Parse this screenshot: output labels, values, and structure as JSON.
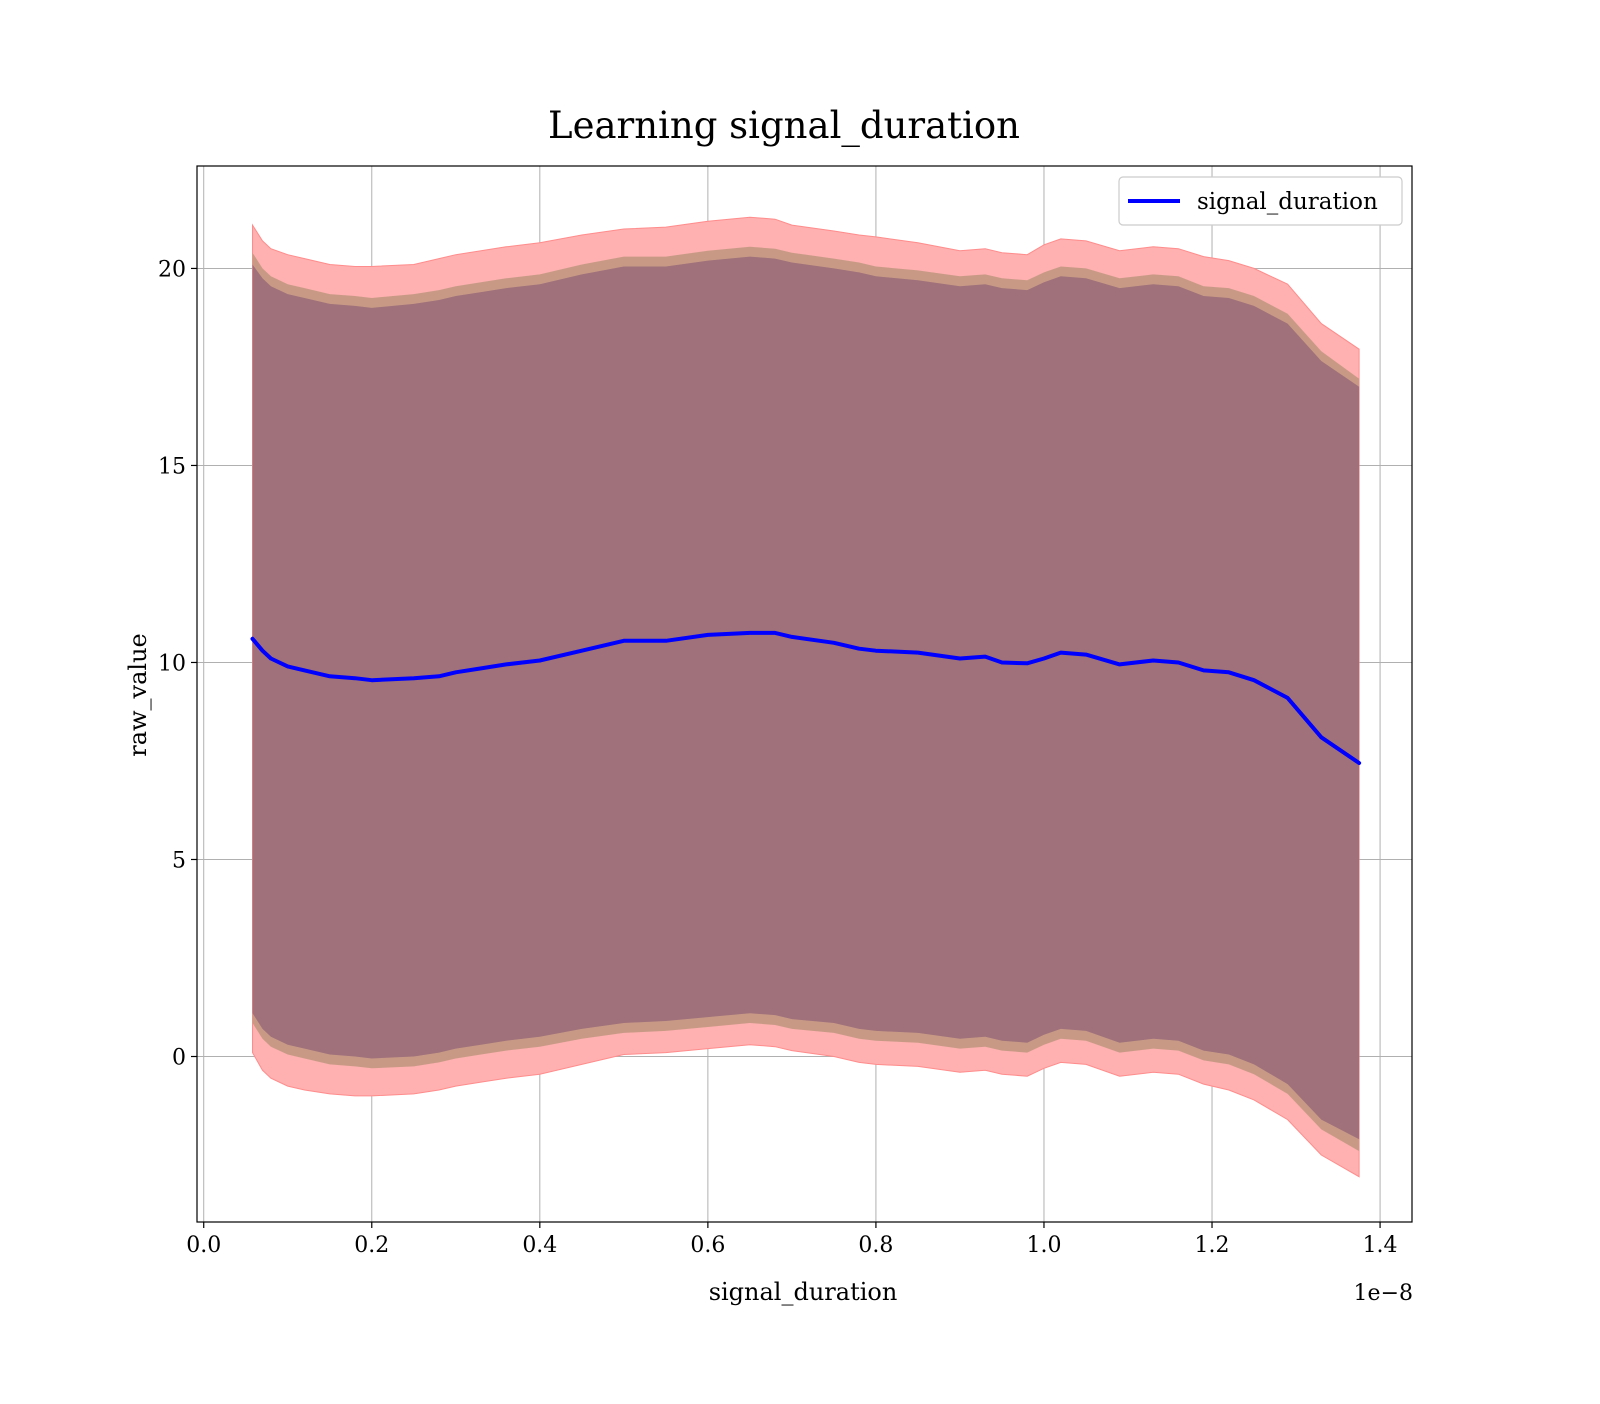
{
  "chart_data": {
    "type": "line",
    "title": "Learning signal_duration",
    "xlabel": "signal_duration",
    "ylabel": "raw_value",
    "x_offset_label": "1e−8",
    "xlim": [
      -0.008,
      1.438
    ],
    "ylim": [
      -4.2,
      22.6
    ],
    "x_ticks": [
      0.0,
      0.2,
      0.4,
      0.6,
      0.8,
      1.0,
      1.2,
      1.4
    ],
    "x_tick_labels": [
      "0.0",
      "0.2",
      "0.4",
      "0.6",
      "0.8",
      "1.0",
      "1.2",
      "1.4"
    ],
    "y_ticks": [
      0,
      5,
      10,
      15,
      20
    ],
    "y_tick_labels": [
      "0",
      "5",
      "10",
      "15",
      "20"
    ],
    "grid": true,
    "legend_position": "top-right",
    "line_color": "#0000ff",
    "band_colors": {
      "outer": "#ffb0b0",
      "middle": "#c89a86",
      "inner": "#a0717a"
    },
    "series": [
      {
        "name": "signal_duration",
        "x": [
          0.058,
          0.07,
          0.08,
          0.1,
          0.12,
          0.15,
          0.18,
          0.2,
          0.25,
          0.28,
          0.3,
          0.33,
          0.36,
          0.4,
          0.45,
          0.5,
          0.55,
          0.6,
          0.65,
          0.68,
          0.7,
          0.75,
          0.78,
          0.8,
          0.85,
          0.9,
          0.93,
          0.95,
          0.98,
          1.0,
          1.02,
          1.05,
          1.09,
          1.13,
          1.16,
          1.19,
          1.22,
          1.25,
          1.29,
          1.33,
          1.375
        ],
        "values": [
          10.6,
          10.3,
          10.1,
          9.9,
          9.8,
          9.65,
          9.6,
          9.55,
          9.6,
          9.65,
          9.75,
          9.85,
          9.95,
          10.05,
          10.3,
          10.55,
          10.55,
          10.7,
          10.75,
          10.75,
          10.65,
          10.5,
          10.35,
          10.3,
          10.25,
          10.1,
          10.15,
          10.0,
          9.98,
          10.1,
          10.25,
          10.2,
          9.95,
          10.05,
          10.0,
          9.8,
          9.75,
          9.55,
          9.1,
          8.1,
          7.45
        ],
        "band_outer_upper": [
          21.1,
          20.7,
          20.5,
          20.35,
          20.25,
          20.1,
          20.05,
          20.05,
          20.1,
          20.25,
          20.35,
          20.45,
          20.55,
          20.65,
          20.85,
          21.0,
          21.05,
          21.2,
          21.3,
          21.25,
          21.1,
          20.95,
          20.85,
          20.8,
          20.65,
          20.45,
          20.5,
          20.4,
          20.35,
          20.6,
          20.75,
          20.7,
          20.45,
          20.55,
          20.5,
          20.3,
          20.2,
          20.0,
          19.6,
          18.6,
          17.95
        ],
        "band_middle_upper": [
          20.4,
          20.0,
          19.8,
          19.6,
          19.5,
          19.35,
          19.3,
          19.25,
          19.35,
          19.45,
          19.55,
          19.65,
          19.75,
          19.85,
          20.1,
          20.3,
          20.3,
          20.45,
          20.55,
          20.5,
          20.4,
          20.25,
          20.15,
          20.05,
          19.95,
          19.8,
          19.85,
          19.75,
          19.7,
          19.9,
          20.05,
          20.0,
          19.75,
          19.85,
          19.8,
          19.55,
          19.5,
          19.3,
          18.85,
          17.9,
          17.2
        ],
        "band_inner_upper": [
          20.1,
          19.75,
          19.55,
          19.35,
          19.25,
          19.1,
          19.05,
          19.0,
          19.1,
          19.2,
          19.3,
          19.4,
          19.5,
          19.6,
          19.85,
          20.05,
          20.05,
          20.2,
          20.3,
          20.25,
          20.15,
          20.0,
          19.9,
          19.8,
          19.7,
          19.55,
          19.6,
          19.5,
          19.45,
          19.65,
          19.8,
          19.75,
          19.5,
          19.6,
          19.55,
          19.3,
          19.25,
          19.05,
          18.6,
          17.65,
          17.0
        ],
        "band_inner_lower": [
          1.1,
          0.7,
          0.5,
          0.3,
          0.2,
          0.05,
          0.0,
          -0.05,
          0.0,
          0.1,
          0.2,
          0.3,
          0.4,
          0.5,
          0.7,
          0.85,
          0.9,
          1.0,
          1.1,
          1.05,
          0.95,
          0.85,
          0.7,
          0.65,
          0.6,
          0.45,
          0.5,
          0.4,
          0.35,
          0.55,
          0.7,
          0.65,
          0.35,
          0.45,
          0.4,
          0.15,
          0.05,
          -0.2,
          -0.7,
          -1.6,
          -2.1
        ],
        "band_middle_lower": [
          0.85,
          0.45,
          0.25,
          0.05,
          -0.05,
          -0.2,
          -0.25,
          -0.3,
          -0.25,
          -0.15,
          -0.05,
          0.05,
          0.15,
          0.25,
          0.45,
          0.6,
          0.65,
          0.75,
          0.85,
          0.8,
          0.7,
          0.6,
          0.45,
          0.4,
          0.35,
          0.2,
          0.25,
          0.15,
          0.1,
          0.3,
          0.45,
          0.4,
          0.1,
          0.2,
          0.15,
          -0.1,
          -0.2,
          -0.45,
          -0.95,
          -1.85,
          -2.4
        ],
        "band_outer_lower": [
          0.1,
          -0.35,
          -0.55,
          -0.75,
          -0.85,
          -0.95,
          -1.0,
          -1.0,
          -0.95,
          -0.85,
          -0.75,
          -0.65,
          -0.55,
          -0.45,
          -0.2,
          0.05,
          0.1,
          0.2,
          0.3,
          0.25,
          0.15,
          0.0,
          -0.15,
          -0.2,
          -0.25,
          -0.4,
          -0.35,
          -0.45,
          -0.5,
          -0.3,
          -0.15,
          -0.2,
          -0.5,
          -0.4,
          -0.45,
          -0.7,
          -0.85,
          -1.1,
          -1.6,
          -2.5,
          -3.05
        ]
      }
    ]
  }
}
